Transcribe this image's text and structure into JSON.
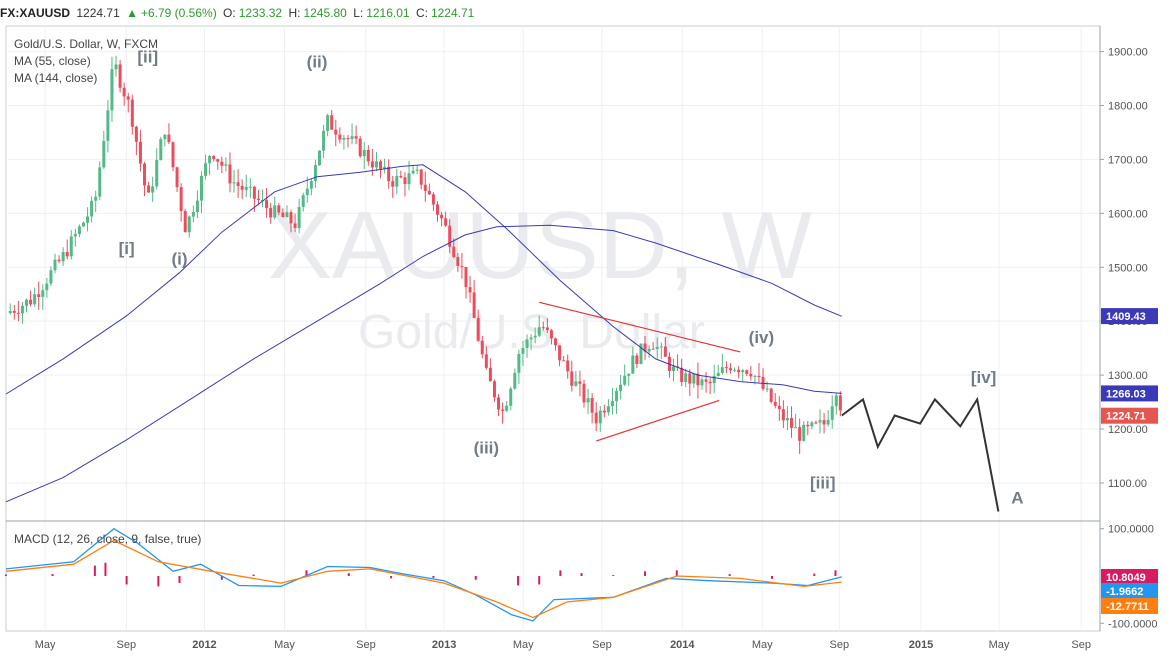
{
  "header": {
    "symbol": "FX:XAUUSD",
    "last": "1224.71",
    "change": "+6.79 (0.56%)",
    "o_label": "O:",
    "o_value": "1233.32",
    "h_label": "H:",
    "h_value": "1245.80",
    "l_label": "L:",
    "l_value": "1216.01",
    "c_label": "C:",
    "c_value": "1224.71"
  },
  "legend": {
    "title": "Gold/U.S. Dollar, W, FXCM",
    "ma1": "MA (55, close)",
    "ma2": "MA (144, close)",
    "macd": "MACD (12, 26, close, 9, false, true)"
  },
  "watermark": {
    "symbol": "XAUUSD, W",
    "name": "Gold/U.S. Dollar"
  },
  "colors": {
    "up": "#53b987",
    "down": "#eb4d5c",
    "ma": "#3a3ab8",
    "trend": "#e53030",
    "projection": "#333333",
    "macd": "#2196f3",
    "signal": "#ff7f0e",
    "hist": "#d81b60",
    "wave_label": "#707c88"
  },
  "chart_data": [
    {
      "type": "line",
      "title": "Gold/U.S. Dollar, W, FXCM",
      "x_ticks": [
        "May",
        "Sep",
        "2012",
        "May",
        "Sep",
        "2013",
        "May",
        "Sep",
        "2014",
        "May",
        "Sep",
        "2015",
        "May",
        "Sep"
      ],
      "y_ticks": [
        "1100.00",
        "1200.00",
        "1300.00",
        "1400.00",
        "1500.00",
        "1600.00",
        "1700.00",
        "1800.00",
        "1900.00"
      ],
      "ylim": [
        1035,
        1940
      ],
      "x_range": [
        "2011-03",
        "2015-09"
      ],
      "series": [
        {
          "name": "MA (55, close)",
          "values": [
            [
              2011.13,
              1265
            ],
            [
              2011.4,
              1330
            ],
            [
              2011.7,
              1410
            ],
            [
              2011.95,
              1490
            ],
            [
              2012.15,
              1565
            ],
            [
              2012.4,
              1640
            ],
            [
              2012.6,
              1668
            ],
            [
              2012.8,
              1676
            ],
            [
              2013.0,
              1687
            ],
            [
              2013.1,
              1690
            ],
            [
              2013.3,
              1640
            ],
            [
              2013.5,
              1570
            ],
            [
              2013.75,
              1475
            ],
            [
              2014.0,
              1390
            ],
            [
              2014.2,
              1330
            ],
            [
              2014.4,
              1300
            ],
            [
              2014.6,
              1288
            ],
            [
              2014.8,
              1282
            ],
            [
              2014.95,
              1270
            ],
            [
              2015.08,
              1266
            ]
          ]
        },
        {
          "name": "MA (144, close)",
          "values": [
            [
              2011.13,
              1065
            ],
            [
              2011.4,
              1110
            ],
            [
              2011.7,
              1180
            ],
            [
              2012.0,
              1255
            ],
            [
              2012.3,
              1330
            ],
            [
              2012.6,
              1400
            ],
            [
              2012.9,
              1470
            ],
            [
              2013.1,
              1520
            ],
            [
              2013.3,
              1560
            ],
            [
              2013.45,
              1575
            ],
            [
              2013.7,
              1578
            ],
            [
              2014.0,
              1568
            ],
            [
              2014.2,
              1545
            ],
            [
              2014.5,
              1505
            ],
            [
              2014.75,
              1470
            ],
            [
              2014.95,
              1430
            ],
            [
              2015.08,
              1409
            ]
          ]
        }
      ],
      "tags": [
        {
          "label": "1409.43",
          "value": 1409.43,
          "color": "#3a3ab8"
        },
        {
          "label": "1266.03",
          "value": 1266.03,
          "color": "#3a3ab8"
        },
        {
          "label": "1224.71",
          "value": 1224.71,
          "color": "#e4564f"
        }
      ],
      "trendlines": [
        {
          "from": [
            2013.65,
            1435
          ],
          "to": [
            2014.6,
            1343
          ]
        },
        {
          "from": [
            2013.92,
            1178
          ],
          "to": [
            2014.5,
            1253
          ]
        }
      ],
      "projection": [
        [
          2015.08,
          1225
        ],
        [
          2015.18,
          1255
        ],
        [
          2015.25,
          1167
        ],
        [
          2015.33,
          1225
        ],
        [
          2015.45,
          1210
        ],
        [
          2015.52,
          1255
        ],
        [
          2015.64,
          1205
        ],
        [
          2015.72,
          1255
        ],
        [
          2015.82,
          1047
        ]
      ],
      "wave_labels": [
        {
          "text": "[ii]",
          "x": 2011.8,
          "y": 1880
        },
        {
          "text": "[i]",
          "x": 2011.7,
          "y": 1525
        },
        {
          "text": "(i)",
          "x": 2011.95,
          "y": 1505
        },
        {
          "text": "(ii)",
          "x": 2012.6,
          "y": 1870
        },
        {
          "text": "(iii)",
          "x": 2013.4,
          "y": 1155
        },
        {
          "text": "(iv)",
          "x": 2014.7,
          "y": 1360
        },
        {
          "text": "[iii]",
          "x": 2014.99,
          "y": 1090
        },
        {
          "text": "[iv]",
          "x": 2015.75,
          "y": 1285
        },
        {
          "text": "A",
          "x": 2015.91,
          "y": 1062
        }
      ]
    },
    {
      "type": "line",
      "title": "MACD (12, 26, close, 9, false, true)",
      "y_ticks": [
        "100.0000",
        "-100.0000"
      ],
      "ylim": [
        -110,
        110
      ],
      "series": [
        {
          "name": "MACD",
          "values": [
            [
              2011.13,
              15
            ],
            [
              2011.45,
              30
            ],
            [
              2011.64,
              100
            ],
            [
              2011.75,
              70
            ],
            [
              2011.92,
              10
            ],
            [
              2012.05,
              25
            ],
            [
              2012.23,
              -20
            ],
            [
              2012.43,
              -22
            ],
            [
              2012.65,
              20
            ],
            [
              2012.85,
              18
            ],
            [
              2013.0,
              5
            ],
            [
              2013.2,
              -10
            ],
            [
              2013.35,
              -40
            ],
            [
              2013.52,
              -82
            ],
            [
              2013.62,
              -95
            ],
            [
              2013.72,
              -50
            ],
            [
              2014.0,
              -45
            ],
            [
              2014.25,
              -5
            ],
            [
              2014.45,
              -10
            ],
            [
              2014.75,
              -15
            ],
            [
              2014.92,
              -20
            ],
            [
              2015.08,
              -2
            ]
          ]
        },
        {
          "name": "Signal",
          "values": [
            [
              2011.13,
              10
            ],
            [
              2011.45,
              25
            ],
            [
              2011.64,
              75
            ],
            [
              2011.85,
              30
            ],
            [
              2012.1,
              10
            ],
            [
              2012.43,
              -15
            ],
            [
              2012.65,
              10
            ],
            [
              2012.85,
              15
            ],
            [
              2013.2,
              -15
            ],
            [
              2013.45,
              -55
            ],
            [
              2013.62,
              -88
            ],
            [
              2013.78,
              -55
            ],
            [
              2014.0,
              -45
            ],
            [
              2014.3,
              0
            ],
            [
              2014.6,
              -5
            ],
            [
              2014.9,
              -22
            ],
            [
              2015.08,
              -13
            ]
          ]
        }
      ],
      "histogram": [
        [
          2011.13,
          3
        ],
        [
          2011.35,
          4
        ],
        [
          2011.55,
          22
        ],
        [
          2011.6,
          28
        ],
        [
          2011.7,
          -18
        ],
        [
          2011.85,
          -22
        ],
        [
          2011.95,
          -15
        ],
        [
          2012.15,
          -8
        ],
        [
          2012.3,
          3
        ],
        [
          2012.55,
          12
        ],
        [
          2012.75,
          6
        ],
        [
          2012.95,
          -5
        ],
        [
          2013.15,
          -4
        ],
        [
          2013.35,
          -8
        ],
        [
          2013.55,
          -20
        ],
        [
          2013.65,
          -18
        ],
        [
          2013.75,
          12
        ],
        [
          2013.85,
          6
        ],
        [
          2014.0,
          2
        ],
        [
          2014.15,
          10
        ],
        [
          2014.3,
          12
        ],
        [
          2014.55,
          4
        ],
        [
          2014.75,
          -6
        ],
        [
          2014.95,
          5
        ],
        [
          2015.05,
          12
        ]
      ],
      "tags": [
        {
          "label": "10.8049",
          "value": 10.8049,
          "color": "#d81b60"
        },
        {
          "label": "-1.9662",
          "value": -1.9662,
          "color": "#2196f3"
        },
        {
          "label": "-12.7711",
          "value": -12.7711,
          "color": "#ff7f0e"
        }
      ]
    }
  ]
}
